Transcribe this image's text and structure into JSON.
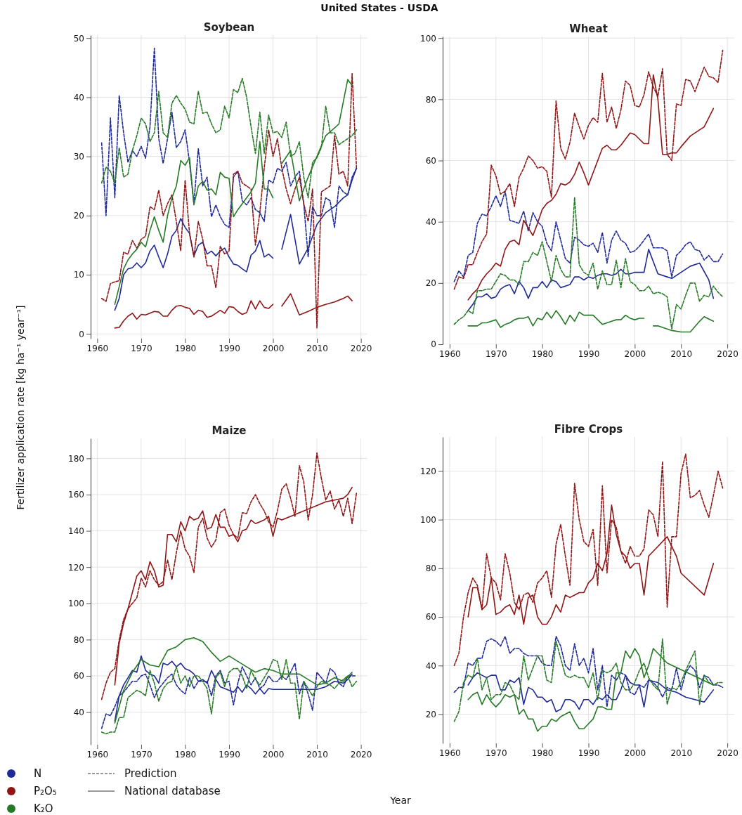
{
  "chart_data": [
    {
      "type": "line",
      "title": "Soybean",
      "xlabel": "Year",
      "ylabel": "Fertilizer application rate [kg ha⁻¹ year⁻¹]",
      "annotations": [
        "United States - USDA",
        "Prediction",
        "National database"
      ],
      "legend": "bottom left",
      "grid": true,
      "xlim": [
        1958.5,
        2021.5
      ],
      "xticks": [
        1960,
        1970,
        1980,
        1990,
        2000,
        2010,
        2020
      ],
      "ylim": [
        -0.8,
        50.5
      ],
      "yticks": [
        0,
        10,
        20,
        30,
        40,
        50
      ],
      "x": [
        1961,
        1962,
        1963,
        1964,
        1965,
        1966,
        1967,
        1968,
        1969,
        1970,
        1971,
        1972,
        1973,
        1974,
        1975,
        1976,
        1977,
        1978,
        1979,
        1980,
        1981,
        1982,
        1983,
        1984,
        1985,
        1986,
        1987,
        1988,
        1989,
        1990,
        1991,
        1992,
        1993,
        1994,
        1995,
        1996,
        1997,
        1998,
        1999,
        2000,
        2001,
        2002,
        2003,
        2004,
        2005,
        2006,
        2007,
        2008,
        2009,
        2010,
        2011,
        2012,
        2013,
        2014,
        2015,
        2016,
        2017,
        2018,
        2019
      ],
      "series": [
        {
          "name": "N",
          "color": "#1f2a96",
          "line_style": "dashed",
          "values": [
            32.3,
            20,
            36.5,
            23,
            40.3,
            34,
            29,
            31,
            30,
            31.7,
            29.7,
            35,
            48.3,
            33,
            28.8,
            33,
            37.5,
            31.5,
            32.5,
            34.5,
            29,
            22,
            31.3,
            25,
            26.5,
            19.8,
            21.8,
            19.8,
            18.5,
            18,
            26.5,
            27.5,
            22.5,
            21.8,
            23,
            21,
            20.5,
            19,
            26,
            25.5,
            28,
            27.5,
            29,
            25,
            26.5,
            27.5,
            22,
            13,
            21.5,
            20,
            20,
            23,
            22.5,
            18,
            25,
            24,
            23.5,
            26.5,
            28
          ]
        },
        {
          "color": "#1f2a96",
          "line_style": "solid",
          "x": [
            1964,
            1965,
            1966,
            1967,
            1968,
            1969,
            1970,
            1971,
            1972,
            1973,
            1974,
            1975,
            1976,
            1977,
            1978,
            1979,
            1980,
            1981,
            1982,
            1983,
            1984,
            1985,
            1986,
            1987,
            1988,
            1989,
            1990,
            1991,
            1992,
            1993,
            1994,
            1995,
            1996,
            1997,
            1998,
            1999,
            2000,
            2001,
            2002,
            2004,
            2006,
            2008,
            2010,
            2012,
            2014,
            2016,
            2017,
            2018,
            2019
          ],
          "values": [
            4,
            6,
            10,
            11,
            11.2,
            12,
            11.2,
            12,
            14,
            15,
            13,
            11.2,
            13.5,
            16.5,
            17.5,
            19.5,
            18,
            17,
            13.2,
            15,
            15.5,
            13.5,
            14,
            13.2,
            14,
            14.5,
            13,
            11.8,
            11.6,
            11,
            10.5,
            13.3,
            14,
            15.8,
            13,
            13.5,
            12.8,
            null,
            14.3,
            20.2,
            11.8,
            14.5,
            18.5,
            20.5,
            21.5,
            23,
            23.5,
            26,
            28
          ]
        },
        {
          "name": "P₂O₅",
          "color": "#8e1616",
          "line_style": "dashed",
          "values": [
            6,
            5.5,
            8.5,
            8.8,
            9,
            13.8,
            13.5,
            15.8,
            14.5,
            16,
            16.5,
            21.5,
            21,
            24.3,
            20,
            22,
            23.5,
            19,
            14,
            26,
            17,
            13,
            19,
            16,
            11.5,
            11.5,
            7.8,
            14.8,
            13.5,
            14,
            27,
            27.5,
            25.5,
            25,
            24.5,
            15,
            20.5,
            28,
            34.5,
            30,
            33,
            28,
            24.5,
            22,
            24.5,
            26.5,
            22,
            19,
            24.5,
            1,
            24,
            24.5,
            25,
            33.5,
            27,
            27.5,
            25,
            44,
            28
          ]
        },
        {
          "color": "#8e1616",
          "line_style": "solid",
          "x": [
            1964,
            1965,
            1966,
            1967,
            1968,
            1969,
            1970,
            1971,
            1972,
            1973,
            1974,
            1975,
            1976,
            1977,
            1978,
            1979,
            1980,
            1981,
            1982,
            1983,
            1984,
            1985,
            1986,
            1987,
            1988,
            1989,
            1990,
            1991,
            1992,
            1993,
            1994,
            1995,
            1996,
            1997,
            1998,
            1999,
            2000,
            2001,
            2002,
            2004,
            2006,
            2008,
            2010,
            2012,
            2014,
            2016,
            2017,
            2018
          ],
          "values": [
            1,
            1.1,
            2.2,
            3,
            3.5,
            2.5,
            3.3,
            3.2,
            3.5,
            3.8,
            3.7,
            3,
            3,
            4,
            4.7,
            4.8,
            4.5,
            4.3,
            3.3,
            4,
            3.8,
            2.8,
            3,
            3.5,
            4,
            3.5,
            4.6,
            4.5,
            3.8,
            3.3,
            3.6,
            5.6,
            4.2,
            5.6,
            4.5,
            4.3,
            5,
            null,
            4.7,
            6.8,
            3.2,
            3.8,
            4.5,
            5,
            5.4,
            6,
            6.4,
            5.6
          ]
        },
        {
          "name": "K₂O",
          "color": "#267a26",
          "line_style": "dashed",
          "values": [
            25.5,
            28.2,
            27.5,
            25.5,
            31.5,
            26.5,
            27,
            31,
            33.5,
            36.5,
            35.5,
            32.5,
            34,
            41,
            34,
            33.2,
            39,
            40.3,
            39,
            38,
            35.8,
            35.5,
            41,
            37.3,
            37.5,
            35.5,
            34,
            34.5,
            38.5,
            36.5,
            41.3,
            40.8,
            43.2,
            40,
            35,
            30.5,
            37.5,
            30.5,
            37,
            34,
            34.2,
            33.2,
            35.8,
            30,
            30.5,
            32.5,
            26.5,
            23,
            29,
            29.8,
            31.5,
            38.5,
            34,
            34,
            32,
            32.5,
            33,
            33.5,
            34.5
          ]
        },
        {
          "color": "#267a26",
          "line_style": "solid",
          "x": [
            1964,
            1965,
            1966,
            1967,
            1968,
            1969,
            1970,
            1971,
            1972,
            1973,
            1974,
            1975,
            1976,
            1977,
            1978,
            1979,
            1980,
            1981,
            1982,
            1983,
            1984,
            1985,
            1986,
            1987,
            1988,
            1989,
            1990,
            1991,
            1992,
            1993,
            1994,
            1995,
            1996,
            1997,
            1998,
            1999,
            2000,
            2001,
            2002,
            2004,
            2006,
            2008,
            2010,
            2012,
            2014,
            2015,
            2017,
            2018
          ],
          "values": [
            5,
            8,
            11,
            12.5,
            13.5,
            14.3,
            15.5,
            14.7,
            17.5,
            19.8,
            17.5,
            15.5,
            20,
            23,
            25,
            29.3,
            28.5,
            29.8,
            21.8,
            25,
            25.8,
            24.3,
            24.5,
            23.5,
            27.3,
            26.5,
            26.3,
            19.8,
            21,
            22,
            23,
            24,
            25.5,
            32.5,
            24.5,
            24.5,
            23,
            null,
            28.8,
            31,
            22.5,
            26.5,
            30,
            33.5,
            34.8,
            35.5,
            43,
            42
          ]
        }
      ]
    },
    {
      "type": "line",
      "title": "Wheat",
      "grid": true,
      "xlim": [
        1958.5,
        2021.5
      ],
      "xticks": [
        1960,
        1970,
        1980,
        1990,
        2000,
        2010,
        2020
      ],
      "ylim": [
        0,
        100.5
      ],
      "yticks": [
        0,
        20,
        40,
        60,
        80,
        100
      ],
      "x": [
        1961,
        1962,
        1963,
        1964,
        1965,
        1966,
        1967,
        1968,
        1969,
        1970,
        1971,
        1972,
        1973,
        1974,
        1975,
        1976,
        1977,
        1978,
        1979,
        1980,
        1981,
        1982,
        1983,
        1984,
        1985,
        1986,
        1987,
        1988,
        1989,
        1990,
        1991,
        1992,
        1993,
        1994,
        1995,
        1996,
        1997,
        1998,
        1999,
        2000,
        2001,
        2002,
        2003,
        2004,
        2005,
        2006,
        2007,
        2008,
        2009,
        2010,
        2011,
        2012,
        2013,
        2014,
        2015,
        2016,
        2017,
        2018,
        2019
      ],
      "series": [
        {
          "color": "#1f2a96",
          "line_style": "dashed",
          "values": [
            20.5,
            24,
            22,
            29,
            30,
            39.5,
            42.5,
            42,
            45,
            48.5,
            45,
            50,
            40.5,
            40,
            39.5,
            43.5,
            37,
            43,
            40,
            38.5,
            33,
            30.5,
            40,
            34,
            28,
            26.5,
            35,
            34,
            32.5,
            32,
            33,
            30,
            36.5,
            26.5,
            34,
            37,
            34,
            33,
            30,
            30.5,
            32,
            34,
            36,
            31.5,
            31.5,
            31.5,
            30.5,
            22,
            29,
            30.5,
            32.5,
            33.5,
            31,
            30.5,
            27.5,
            29,
            27,
            27,
            29.5
          ]
        },
        {
          "color": "#1f2a96",
          "line_style": "solid",
          "x": [
            1964,
            1965,
            1966,
            1967,
            1968,
            1969,
            1970,
            1971,
            1972,
            1973,
            1974,
            1975,
            1976,
            1977,
            1978,
            1979,
            1980,
            1981,
            1982,
            1983,
            1984,
            1985,
            1986,
            1987,
            1988,
            1989,
            1990,
            1991,
            1992,
            1993,
            1994,
            1995,
            1996,
            1997,
            1998,
            1999,
            2000,
            2001,
            2002,
            2003,
            2005,
            2007,
            2008,
            2010,
            2012,
            2014,
            2016,
            2017
          ],
          "values": [
            11,
            13,
            15.5,
            15.5,
            16.5,
            15,
            15.5,
            18,
            19,
            19.5,
            16.5,
            20.5,
            18.5,
            15,
            18.5,
            18.5,
            20.5,
            18.5,
            21,
            20.5,
            18.5,
            19,
            19.5,
            22,
            22,
            21,
            22,
            21.5,
            22.5,
            23,
            23,
            22.5,
            23,
            24.5,
            23,
            23,
            23.5,
            23.5,
            23.5,
            31,
            23,
            22,
            21.5,
            23.5,
            25.5,
            26.5,
            21,
            15
          ]
        },
        {
          "color": "#8e1616",
          "line_style": "dashed",
          "values": [
            18,
            22,
            21.5,
            26,
            26,
            30,
            33.5,
            36,
            58.5,
            55,
            49,
            50,
            52.5,
            45,
            54.5,
            57.5,
            61.5,
            60,
            57.5,
            58,
            56.5,
            48,
            79.5,
            64,
            60.5,
            66,
            75.5,
            71,
            67,
            71.5,
            74,
            72.5,
            88.5,
            72.5,
            77.5,
            70.5,
            76.5,
            86,
            84.5,
            78,
            77.5,
            81.5,
            89,
            84,
            81,
            90,
            62,
            60,
            78.5,
            78,
            86.5,
            86,
            82.5,
            86.5,
            90.5,
            87.5,
            87,
            85.5,
            96
          ]
        },
        {
          "color": "#8e1616",
          "line_style": "solid",
          "x": [
            1964,
            1965,
            1966,
            1967,
            1968,
            1969,
            1970,
            1971,
            1972,
            1973,
            1974,
            1975,
            1976,
            1977,
            1978,
            1979,
            1980,
            1981,
            1982,
            1983,
            1984,
            1985,
            1986,
            1987,
            1988,
            1989,
            1990,
            1991,
            1992,
            1993,
            1994,
            1995,
            1996,
            1997,
            1998,
            1999,
            2000,
            2001,
            2002,
            2003,
            2004,
            2005,
            2006,
            2007,
            2008,
            2009,
            2010,
            2012,
            2014,
            2015,
            2017
          ],
          "values": [
            14.5,
            16.5,
            18,
            21,
            23,
            24.5,
            26.5,
            25.5,
            31,
            33.5,
            34,
            32.5,
            40.5,
            38,
            35.5,
            39.5,
            44,
            46,
            47,
            49,
            52.5,
            52,
            53,
            55.5,
            59.5,
            56,
            52,
            56,
            60,
            64,
            65,
            63.5,
            63.5,
            65,
            67,
            69,
            68.5,
            67,
            65.5,
            65.5,
            88,
            80,
            62,
            62,
            62.5,
            62.5,
            64.5,
            68,
            70,
            71,
            77
          ]
        },
        {
          "color": "#267a26",
          "line_style": "dashed",
          "values": [
            6.5,
            8,
            9,
            11,
            10,
            17.5,
            17.5,
            18,
            18,
            20.5,
            23,
            22.5,
            21,
            21,
            19.5,
            27,
            27,
            30,
            29,
            33.5,
            27,
            20.5,
            29,
            24.5,
            22,
            22,
            48,
            26,
            23.5,
            22.5,
            26.5,
            18,
            24,
            19.5,
            19.5,
            27.5,
            18.5,
            28,
            20.5,
            19.5,
            17.5,
            17.5,
            19,
            16.5,
            17,
            16.5,
            15.5,
            5,
            13,
            11.5,
            16,
            20,
            20,
            14,
            16,
            15.5,
            19,
            17,
            15.5
          ]
        },
        {
          "color": "#267a26",
          "line_style": "solid",
          "x": [
            1964,
            1965,
            1966,
            1967,
            1968,
            1969,
            1970,
            1971,
            1972,
            1973,
            1974,
            1975,
            1976,
            1977,
            1978,
            1979,
            1980,
            1981,
            1982,
            1983,
            1984,
            1985,
            1986,
            1987,
            1988,
            1989,
            1990,
            1991,
            1992,
            1993,
            1994,
            1995,
            1996,
            1997,
            1998,
            1999,
            2000,
            2001,
            2002,
            2003,
            2004,
            2005,
            2006,
            2008,
            2010,
            2012,
            2014,
            2015,
            2017
          ],
          "values": [
            6,
            6,
            6,
            7,
            7,
            7.5,
            8,
            5.5,
            6.5,
            7,
            8,
            8.5,
            8.5,
            9,
            6,
            8.5,
            8,
            10.5,
            8.5,
            11,
            9,
            6.5,
            9.5,
            7.5,
            10.5,
            9.5,
            9.5,
            9.5,
            8,
            6.5,
            7,
            7.5,
            8,
            8,
            9.5,
            8.5,
            8,
            8.5,
            8.5,
            null,
            6,
            6,
            5.5,
            4.5,
            4,
            4,
            7.5,
            9,
            7.5
          ]
        }
      ]
    },
    {
      "type": "line",
      "title": "Maize",
      "grid": true,
      "xlim": [
        1958.5,
        2021.5
      ],
      "xticks": [
        1960,
        1970,
        1980,
        1990,
        2000,
        2010,
        2020
      ],
      "ylim": [
        22,
        191
      ],
      "yticks": [
        40,
        60,
        80,
        100,
        120,
        140,
        160,
        180
      ],
      "x": [
        1961,
        1962,
        1963,
        1964,
        1965,
        1966,
        1967,
        1968,
        1969,
        1970,
        1971,
        1972,
        1973,
        1974,
        1975,
        1976,
        1977,
        1978,
        1979,
        1980,
        1981,
        1982,
        1983,
        1984,
        1985,
        1986,
        1987,
        1988,
        1989,
        1990,
        1991,
        1992,
        1993,
        1994,
        1995,
        1996,
        1997,
        1998,
        1999,
        2000,
        2001,
        2002,
        2003,
        2004,
        2005,
        2006,
        2007,
        2008,
        2009,
        2010,
        2011,
        2012,
        2013,
        2014,
        2015,
        2016,
        2017,
        2018,
        2019
      ],
      "series": [
        {
          "color": "#1f2a96",
          "line_style": "dashed",
          "values": [
            31,
            39,
            38,
            43,
            49,
            51,
            54,
            57,
            57,
            60,
            61,
            55,
            48,
            53,
            56,
            59,
            61,
            55,
            52,
            50,
            59,
            53,
            57,
            57,
            57,
            49,
            60,
            63,
            56,
            57,
            44,
            56,
            65,
            60,
            55,
            59,
            53,
            55,
            60,
            57,
            57,
            60,
            58,
            62,
            67,
            50,
            57,
            50,
            41,
            62,
            59,
            56,
            64,
            62,
            56,
            54,
            60,
            60,
            60
          ]
        },
        {
          "color": "#1f2a96",
          "line_style": "solid",
          "x": [
            1964,
            1965,
            1966,
            1967,
            1968,
            1969,
            1970,
            1971,
            1972,
            1973,
            1974,
            1975,
            1976,
            1977,
            1978,
            1979,
            1980,
            1981,
            1982,
            1983,
            1984,
            1985,
            1986,
            1987,
            1988,
            1989,
            1990,
            1991,
            1992,
            1993,
            1994,
            1995,
            1996,
            1997,
            1998,
            1999,
            2000,
            2002,
            2004,
            2006,
            2008,
            2010,
            2012,
            2014,
            2016,
            2017,
            2018
          ],
          "values": [
            35,
            49,
            55,
            59,
            63,
            62,
            71,
            63,
            61,
            60,
            56,
            67,
            66,
            68,
            65,
            67,
            64,
            63,
            61,
            57,
            58,
            56,
            63,
            58,
            54,
            53,
            52,
            51,
            54,
            51,
            55,
            53,
            50,
            53,
            50,
            53,
            52.5,
            52.5,
            52.5,
            52.5,
            52.5,
            52.5,
            54,
            57,
            56,
            58,
            61
          ]
        },
        {
          "color": "#8e1616",
          "line_style": "dashed",
          "values": [
            47,
            56,
            62,
            64,
            80,
            91,
            97,
            100,
            103,
            114,
            109,
            118,
            113,
            110,
            112,
            124,
            113,
            128,
            140,
            130,
            126,
            117,
            142,
            147,
            136,
            131,
            135,
            150,
            152,
            143,
            138,
            136,
            150,
            149.5,
            156,
            160,
            155,
            151,
            145,
            142,
            151,
            163,
            166,
            158,
            148,
            176,
            167,
            146,
            160,
            183,
            169,
            157,
            162,
            152,
            157,
            148,
            158,
            144,
            161
          ]
        },
        {
          "color": "#8e1616",
          "line_style": "solid",
          "x": [
            1964,
            1965,
            1966,
            1967,
            1968,
            1969,
            1970,
            1971,
            1972,
            1973,
            1974,
            1975,
            1976,
            1977,
            1978,
            1979,
            1980,
            1981,
            1982,
            1983,
            1984,
            1985,
            1986,
            1987,
            1988,
            1989,
            1990,
            1991,
            1992,
            1993,
            1994,
            1995,
            1996,
            1997,
            1998,
            1999,
            2000,
            2001,
            2002,
            2004,
            2006,
            2008,
            2010,
            2012,
            2014,
            2016,
            2017,
            2018
          ],
          "values": [
            55,
            78,
            89,
            97,
            106,
            115,
            118,
            113,
            123,
            118,
            109,
            110,
            138,
            138,
            134,
            145,
            140,
            148,
            146,
            147,
            151,
            141,
            142,
            149,
            142,
            142,
            137,
            138,
            134,
            140,
            141,
            146,
            144,
            145,
            146,
            148,
            137,
            147,
            146,
            148,
            150,
            152,
            154,
            156,
            157,
            158,
            160,
            164
          ]
        },
        {
          "color": "#267a26",
          "line_style": "dashed",
          "values": [
            29,
            28,
            29,
            29,
            37,
            37,
            48,
            50,
            52,
            51,
            49,
            63,
            56,
            46,
            53,
            56,
            57,
            65,
            56,
            60,
            54,
            60,
            60,
            57,
            53,
            39,
            59,
            62,
            54,
            62,
            64,
            64,
            60,
            53,
            63,
            58,
            55,
            59,
            63,
            69,
            68,
            58,
            69,
            56,
            56,
            36,
            57,
            53,
            49,
            54,
            57,
            56,
            55,
            53,
            56,
            58,
            60,
            54,
            57
          ]
        },
        {
          "color": "#267a26",
          "line_style": "solid",
          "x": [
            1964,
            1966,
            1968,
            1970,
            1972,
            1974,
            1976,
            1978,
            1980,
            1982,
            1984,
            1986,
            1988,
            1990,
            1992,
            1994,
            1996,
            1998,
            2000,
            2002,
            2004,
            2006,
            2008,
            2010,
            2012,
            2014,
            2016,
            2018
          ],
          "values": [
            34,
            52,
            62,
            69,
            66,
            65,
            74,
            76,
            80,
            81,
            79,
            73,
            68,
            71,
            68,
            65,
            62,
            64,
            63,
            61,
            61,
            61,
            58,
            55,
            56,
            59,
            57,
            62
          ]
        }
      ]
    },
    {
      "type": "line",
      "title": "Fibre Crops",
      "grid": true,
      "xlim": [
        1958.5,
        2021.5
      ],
      "xticks": [
        1960,
        1970,
        1980,
        1990,
        2000,
        2010,
        2020
      ],
      "ylim": [
        8,
        134
      ],
      "yticks": [
        20,
        40,
        60,
        80,
        100,
        120
      ],
      "x": [
        1961,
        1962,
        1963,
        1964,
        1965,
        1966,
        1967,
        1968,
        1969,
        1970,
        1971,
        1972,
        1973,
        1974,
        1975,
        1976,
        1977,
        1978,
        1979,
        1980,
        1981,
        1982,
        1983,
        1984,
        1985,
        1986,
        1987,
        1988,
        1989,
        1990,
        1991,
        1992,
        1993,
        1994,
        1995,
        1996,
        1997,
        1998,
        1999,
        2000,
        2001,
        2002,
        2003,
        2004,
        2005,
        2006,
        2007,
        2008,
        2009,
        2010,
        2011,
        2012,
        2013,
        2014,
        2015,
        2016,
        2017,
        2018,
        2019
      ],
      "series": [
        {
          "color": "#1f2a96",
          "line_style": "dashed",
          "values": [
            29,
            31,
            31,
            41,
            40,
            43,
            43,
            50,
            51,
            50,
            48,
            52,
            45,
            47,
            47,
            45,
            44,
            44,
            44,
            41,
            40,
            40,
            52,
            48,
            40,
            38,
            49,
            40,
            43,
            37,
            47,
            30,
            40,
            23,
            36,
            34,
            37,
            36,
            29,
            28,
            32,
            31,
            34,
            33,
            31,
            27,
            31,
            30,
            39,
            30,
            37,
            40,
            38,
            31,
            36,
            35,
            32,
            32,
            31
          ]
        },
        {
          "color": "#1f2a96",
          "line_style": "solid",
          "x": [
            1964,
            1965,
            1966,
            1967,
            1968,
            1969,
            1970,
            1971,
            1972,
            1973,
            1974,
            1975,
            1976,
            1977,
            1978,
            1979,
            1980,
            1981,
            1982,
            1983,
            1984,
            1985,
            1986,
            1987,
            1988,
            1989,
            1990,
            1991,
            1992,
            1993,
            1994,
            1995,
            1996,
            1997,
            1998,
            1999,
            2000,
            2001,
            2002,
            2003,
            2005,
            2007,
            2009,
            2011,
            2013,
            2015,
            2017
          ],
          "values": [
            32,
            35,
            37,
            36,
            35,
            36,
            36,
            30,
            30,
            34,
            33,
            35,
            24,
            31,
            30,
            27,
            27,
            25,
            26,
            21,
            22,
            26,
            26,
            25,
            22,
            26,
            26,
            24,
            27,
            26,
            28,
            26,
            26,
            30,
            36,
            33,
            32,
            32,
            23,
            34,
            33,
            30,
            29,
            27,
            26,
            25,
            30
          ]
        },
        {
          "color": "#8e1616",
          "line_style": "dashed",
          "values": [
            40,
            45,
            60,
            70,
            76,
            73,
            63,
            86,
            76,
            74,
            67,
            86,
            78,
            66,
            63,
            69,
            70,
            66,
            74,
            76,
            79,
            68,
            90,
            98,
            85,
            73,
            115,
            100,
            91,
            89,
            96,
            73,
            114,
            78,
            100,
            97,
            87,
            82,
            89,
            85,
            85,
            88,
            104,
            102,
            93,
            124,
            64,
            93,
            93,
            119,
            127,
            109,
            110,
            112,
            106,
            101,
            110,
            120,
            113
          ]
        },
        {
          "color": "#8e1616",
          "line_style": "solid",
          "x": [
            1964,
            1965,
            1966,
            1967,
            1968,
            1969,
            1970,
            1971,
            1972,
            1973,
            1974,
            1975,
            1976,
            1977,
            1978,
            1979,
            1980,
            1981,
            1982,
            1983,
            1984,
            1985,
            1986,
            1987,
            1988,
            1989,
            1990,
            1991,
            1992,
            1993,
            1994,
            1995,
            1996,
            1997,
            1998,
            1999,
            2000,
            2001,
            2002,
            2003,
            2005,
            2007,
            2009,
            2010,
            2015,
            2017
          ],
          "values": [
            60,
            72,
            72,
            63,
            65,
            76,
            61,
            62,
            64,
            65,
            61,
            69,
            57,
            68,
            69,
            60,
            57,
            57,
            60,
            65,
            62,
            69,
            68,
            69,
            70,
            70,
            74,
            76,
            82,
            79,
            86,
            106,
            94,
            87,
            85,
            80,
            82,
            82,
            69,
            85,
            89,
            93,
            85,
            78,
            69,
            82
          ]
        },
        {
          "color": "#267a26",
          "line_style": "dashed",
          "values": [
            17,
            21,
            33,
            36,
            35,
            43,
            30,
            35,
            26,
            28,
            28,
            33,
            32,
            28,
            26,
            44,
            34,
            39,
            44,
            44,
            34,
            33,
            50,
            43,
            36,
            35,
            36,
            35,
            35,
            31,
            37,
            26,
            38,
            37,
            38,
            41,
            33,
            30,
            30,
            33,
            38,
            41,
            35,
            32,
            30,
            51,
            24,
            31,
            30,
            33,
            38,
            42,
            46,
            24,
            36,
            33,
            32,
            33,
            33
          ]
        },
        {
          "color": "#267a26",
          "line_style": "solid",
          "x": [
            1964,
            1965,
            1966,
            1967,
            1968,
            1969,
            1970,
            1971,
            1972,
            1973,
            1974,
            1975,
            1976,
            1977,
            1978,
            1979,
            1980,
            1981,
            1982,
            1983,
            1984,
            1985,
            1986,
            1987,
            1988,
            1989,
            1990,
            1991,
            1992,
            1993,
            1994,
            1995,
            1996,
            1997,
            1998,
            1999,
            2000,
            2001,
            2002,
            2003,
            2004,
            2007,
            2017
          ],
          "values": [
            26,
            28,
            29,
            24,
            28,
            25,
            23,
            25,
            28,
            27,
            28,
            20,
            22,
            18,
            18,
            13,
            15,
            15,
            18,
            17,
            19,
            20,
            21,
            17,
            14,
            14,
            16,
            18,
            23,
            23,
            22,
            22,
            37,
            37,
            46,
            43,
            47,
            44,
            35,
            40,
            47,
            41,
            32
          ]
        }
      ]
    }
  ]
}
